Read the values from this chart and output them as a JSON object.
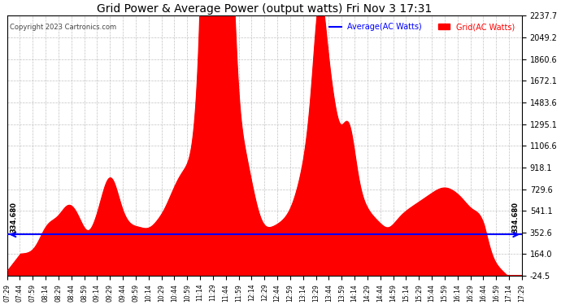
{
  "title": "Grid Power & Average Power (output watts) Fri Nov 3 17:31",
  "copyright": "Copyright 2023 Cartronics.com",
  "legend_avg": "Average(AC Watts)",
  "legend_grid": "Grid(AC Watts)",
  "ymin": -24.5,
  "ymax": 2237.7,
  "yticks": [
    -24.5,
    164.0,
    352.6,
    541.1,
    729.6,
    918.1,
    1106.6,
    1295.1,
    1483.6,
    1672.1,
    1860.6,
    2049.2,
    2237.7
  ],
  "avg_value": 334.68,
  "avg_label": "334.680",
  "bg_color": "#ffffff",
  "fill_color": "#ff0000",
  "avg_line_color": "#0000ff",
  "title_color": "#000000",
  "copyright_color": "#000000",
  "legend_avg_color": "#0000ff",
  "legend_grid_color": "#ff0000",
  "grid_color": "#bbbbbb",
  "x_start_min": 449,
  "x_end_min": 1049,
  "xtick_interval_min": 15,
  "base_floor": -24.5,
  "base_level": 164.0
}
